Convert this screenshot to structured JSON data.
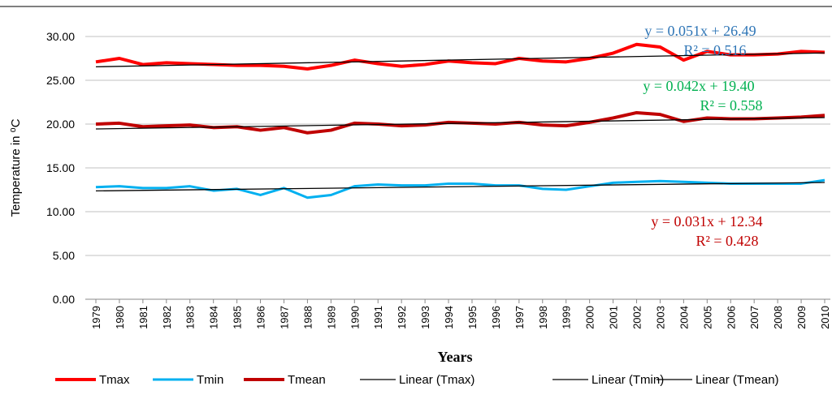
{
  "chart_data": {
    "type": "line",
    "y_label": "Temperature in ⁰C",
    "x_label": "Years",
    "categories": [
      "1979",
      "1980",
      "1981",
      "1982",
      "1983",
      "1984",
      "1985",
      "1986",
      "1987",
      "1988",
      "1989",
      "1990",
      "1991",
      "1992",
      "1993",
      "1994",
      "1995",
      "1996",
      "1997",
      "1998",
      "1999",
      "2000",
      "2001",
      "2002",
      "2003",
      "2004",
      "2005",
      "2006",
      "2007",
      "2008",
      "2009",
      "2010"
    ],
    "series": [
      {
        "name": "Tmax",
        "color": "#ff0000",
        "values": [
          27.1,
          27.5,
          26.8,
          27.0,
          26.9,
          26.8,
          26.7,
          26.7,
          26.6,
          26.3,
          26.7,
          27.3,
          26.9,
          26.6,
          26.8,
          27.2,
          27.0,
          26.9,
          27.5,
          27.2,
          27.1,
          27.5,
          28.1,
          29.1,
          28.8,
          27.3,
          28.3,
          27.9,
          27.9,
          28.0,
          28.3,
          28.2
        ]
      },
      {
        "name": "Tmin",
        "color": "#00b0f0",
        "values": [
          12.8,
          12.9,
          12.7,
          12.7,
          12.9,
          12.4,
          12.6,
          11.9,
          12.7,
          11.6,
          11.9,
          12.9,
          13.1,
          13.0,
          13.0,
          13.2,
          13.2,
          13.0,
          13.0,
          12.6,
          12.5,
          12.9,
          13.3,
          13.4,
          13.5,
          13.4,
          13.3,
          13.2,
          13.2,
          13.2,
          13.2,
          13.6
        ]
      },
      {
        "name": "Tmean",
        "color": "#c00000",
        "values": [
          20.0,
          20.1,
          19.7,
          19.8,
          19.9,
          19.6,
          19.7,
          19.3,
          19.6,
          19.0,
          19.3,
          20.1,
          20.0,
          19.8,
          19.9,
          20.2,
          20.1,
          20.0,
          20.2,
          19.9,
          19.8,
          20.2,
          20.7,
          21.3,
          21.1,
          20.3,
          20.7,
          20.6,
          20.6,
          20.7,
          20.8,
          21.0
        ]
      }
    ],
    "trendlines": [
      {
        "name": "Linear (Tmax)",
        "color": "#000000",
        "slope": 0.051,
        "intercept": 26.49,
        "equation": "y = 0.051x + 26.49",
        "r2": "R² = 0.516",
        "label_color": "#2e75b6"
      },
      {
        "name": "Linear (Tmin)",
        "color": "#000000",
        "slope": 0.031,
        "intercept": 12.34,
        "equation": "y = 0.031x + 12.34",
        "r2": "R² = 0.428",
        "label_color": "#c00000"
      },
      {
        "name": "Linear (Tmean)",
        "color": "#000000",
        "slope": 0.042,
        "intercept": 19.4,
        "equation": "y = 0.042x + 19.40",
        "r2": "R² = 0.558",
        "label_color": "#00b050"
      }
    ],
    "ylim": [
      0,
      30
    ],
    "yticks": [
      {
        "value": 0,
        "label": "0.00"
      },
      {
        "value": 5,
        "label": "5.00"
      },
      {
        "value": 10,
        "label": "10.00"
      },
      {
        "value": 15,
        "label": "15.00"
      },
      {
        "value": 20,
        "label": "20.00"
      },
      {
        "value": 25,
        "label": "25.00"
      },
      {
        "value": 30,
        "label": "30.00"
      }
    ],
    "grid": true,
    "legend": "bottom"
  }
}
